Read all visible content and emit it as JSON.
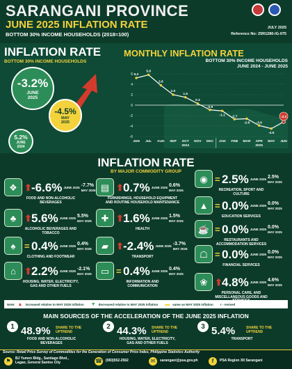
{
  "header": {
    "province": "SARANGANI PROVINCE",
    "title": "JUNE 2025 INFLATION RATE",
    "subtitle": "BOTTOM 30% INCOME HOUSEHOLDS (2018=100)",
    "date": "JULY 2025",
    "reference": "Reference No: 25R1280-IG-075"
  },
  "headline": {
    "title": "INFLATION RATE",
    "subtitle": "BOTTOM 30% INCOME HOUSEHOLDS",
    "june2025": {
      "value": "-3.2%",
      "label1": "JUNE",
      "label2": "2025"
    },
    "may2025": {
      "value": "-4.5%",
      "label1": "MAY",
      "label2": "2025"
    },
    "june2024": {
      "value": "5.2%",
      "label1": "JUNE",
      "label2": "2024"
    }
  },
  "monthly": {
    "title": "MONTHLY INFLATION RATE",
    "subtitle1": "BOTTOM 30% INCOME HOUSEHOLDS",
    "subtitle2": "JUNE 2024 - JUNE 2025"
  },
  "chart_data": {
    "type": "line",
    "categories": [
      "JUN",
      "JUL",
      "AUG",
      "SEP",
      "OCT",
      "NOV",
      "DEC",
      "JAN",
      "FEB",
      "MAR",
      "APR",
      "MAY",
      "JUN"
    ],
    "year_labels": {
      "oct": "2024",
      "apr": "2025"
    },
    "values": [
      5.2,
      5.8,
      3.8,
      2.0,
      1.5,
      0.3,
      -0.9,
      -1.1,
      -2.7,
      -2.6,
      -3.9,
      -4.5,
      -3.2
    ],
    "value_labels": [
      "5.2",
      "5.8",
      "3.8",
      "2.0",
      "1.5",
      "0.3",
      "-0.9",
      "-1.1",
      "-2.7",
      "-2.6",
      "-3.9",
      "-4.5",
      "-3.2"
    ],
    "ylim": [
      -6,
      6
    ],
    "yticks": [
      6,
      4,
      2,
      0,
      -2,
      -4,
      -6
    ],
    "line_color": "#ffffff",
    "marker_color": "#f3d23c",
    "highlight_color": "#d33b2d"
  },
  "commodity": {
    "title": "INFLATION RATE",
    "subtitle": "BY MAJOR COMMODITY GROUP",
    "may_label": "MAY 2025",
    "june_label": "JUNE 2025",
    "groups": [
      {
        "value": "-6.6%",
        "prev": "-7.7%",
        "name1": "FOOD AND NON-ALCOHOLIC",
        "name2": "BEVERAGES",
        "name3": "",
        "icon": "basket-icon",
        "glyph": "❖",
        "trend": "up"
      },
      {
        "value": "5.6%",
        "prev": "5.5%",
        "name1": "ALCOHOLIC BEVERAGES AND",
        "name2": "TOBACCO",
        "name3": "",
        "icon": "bottle-icon",
        "glyph": "♣",
        "trend": "up"
      },
      {
        "value": "0.4%",
        "prev": "0.4%",
        "name1": "CLOTHING AND FOOTWEAR",
        "name2": "",
        "name3": "",
        "icon": "shirt-icon",
        "glyph": "♠",
        "trend": "eq"
      },
      {
        "value": "2.2%",
        "prev": "-2.1%",
        "name1": "HOUSING, WATER, ELECTRICITY,",
        "name2": "GAS AND OTHER FUELS",
        "name3": "",
        "icon": "house-icon",
        "glyph": "⌂",
        "trend": "up"
      },
      {
        "value": "0.7%",
        "prev": "0.6%",
        "name1": "FURNISHINGS, HOUSEHOLD EQUIPMENT",
        "name2": "AND ROUTINE HOUSEHOLD MAINTENANCE",
        "name3": "",
        "icon": "sofa-icon",
        "glyph": "▤",
        "trend": "up"
      },
      {
        "value": "1.6%",
        "prev": "1.5%",
        "name1": "HEALTH",
        "name2": "",
        "name3": "",
        "icon": "health-icon",
        "glyph": "✚",
        "trend": "up"
      },
      {
        "value": "-2.4%",
        "prev": "-3.7%",
        "name1": "TRANSPORT",
        "name2": "",
        "name3": "",
        "icon": "car-icon",
        "glyph": "▰",
        "trend": "up"
      },
      {
        "value": "0.4%",
        "prev": "0.4%",
        "name1": "INFORMATION AND",
        "name2": "COMMUNICATION",
        "name3": "",
        "icon": "laptop-icon",
        "glyph": "▭",
        "trend": "eq"
      },
      {
        "value": "2.5%",
        "prev": "2.5%",
        "name1": "RECREATION, SPORT AND",
        "name2": "CULTURE",
        "name3": "",
        "icon": "ball-icon",
        "glyph": "◉",
        "trend": "eq"
      },
      {
        "value": "0.0%",
        "prev": "0.0%",
        "name1": "EDUCATION SERVICES",
        "name2": "",
        "name3": "",
        "icon": "graduation-cap-icon",
        "glyph": "▲",
        "trend": "eq"
      },
      {
        "value": "0.0%",
        "prev": "0.0%",
        "name1": "RESTAURANTS AND",
        "name2": "ACCOMMODATION SERVICES",
        "name3": "",
        "icon": "restaurant-icon",
        "glyph": "☕",
        "trend": "eq"
      },
      {
        "value": "0.0%",
        "prev": "0.0%",
        "name1": "FINANCIAL SERVICES",
        "name2": "",
        "name3": "",
        "icon": "bank-icon",
        "glyph": "☖",
        "trend": "eq"
      },
      {
        "value": "4.8%",
        "prev": "4.6%",
        "name1": "PERSONAL CARE, AND",
        "name2": "MISCELLANEOUS GOODS AND",
        "name3": "SERVICES",
        "icon": "personal-care-icon",
        "glyph": "❀",
        "trend": "up"
      }
    ]
  },
  "legend": {
    "note": "Note:",
    "increased": "increased relative to MAY 2025 inflation",
    "decreased": "decreased relative to MAY 2025 inflation",
    "same": "same as MAY 2025 inflation",
    "revised": "r - revised"
  },
  "sources": {
    "title": "MAIN SOURCES OF THE ACCELERATION OF THE JUNE 2025 INFLATION",
    "share_label1": "SHARE TO THE",
    "share_label2": "UPTREND",
    "items": [
      {
        "num": "1",
        "value": "48.9%",
        "name1": "FOOD AND NON-ALCOHOLIC",
        "name2": "BEVERAGES",
        "name3": ""
      },
      {
        "num": "2",
        "value": "44.3%",
        "name1": "HOUSING, WATER, ELECTRICITY,",
        "name2": "GAS AND OTHER FUELS",
        "name3": ""
      },
      {
        "num": "3",
        "value": "5.4%",
        "name1": "TRANSPORT",
        "name2": "",
        "name3": ""
      }
    ]
  },
  "footer": {
    "source": "Source: Retail Price Survey of Commodities for the Generation of Consumer Price Index, Philippine Statistics Authority",
    "address1": "BJ Yumen Bldg., Santiago Blvd.,",
    "address2": "Lagao, General Santos City",
    "phone": "(083)552-2562",
    "email": "sarangani@psa.gov.ph",
    "facebook": "PSA Region XII Sarangani"
  },
  "colors": {
    "background": "#0c3b2a",
    "accent": "#f3d23c",
    "green": "#2d8d58",
    "red": "#d33b2d"
  }
}
